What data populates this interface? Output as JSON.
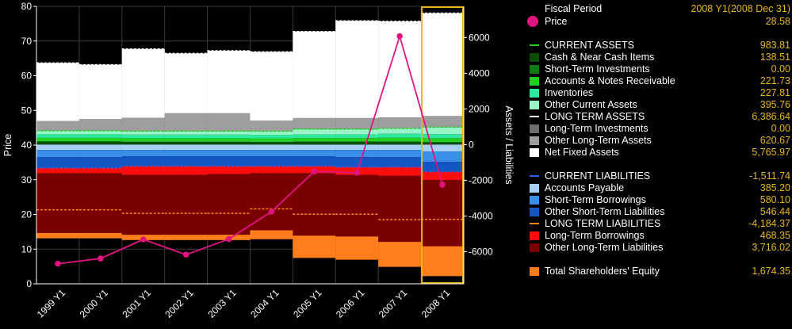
{
  "chart_data": {
    "type": "bar",
    "categories": [
      "1999 Y1",
      "2000 Y1",
      "2001 Y1",
      "2002 Y1",
      "2003 Y1",
      "2004 Y1",
      "2005 Y1",
      "2006 Y1",
      "2007 Y1",
      "2008 Y1"
    ],
    "left_axis": {
      "label": "Price",
      "min": 0,
      "max": 80,
      "ticks": [
        0,
        10,
        20,
        30,
        40,
        50,
        60,
        70,
        80
      ]
    },
    "right_axis": {
      "label": "Assets / Liabilities",
      "min": -7800,
      "max": 7750,
      "ticks": [
        -6000,
        -4000,
        -2000,
        0,
        2000,
        4000,
        6000
      ]
    },
    "price_series": {
      "name": "Price",
      "color": "#e0157f",
      "values": [
        5.8,
        7.3,
        12.8,
        8.4,
        12.9,
        20.8,
        32.4,
        32.0,
        71.4,
        28.58
      ]
    },
    "asset_series": [
      {
        "name": "Cash & Near Cash Items",
        "color": "#0a4d0a",
        "values": [
          180,
          180,
          160,
          160,
          160,
          150,
          170,
          170,
          170,
          138.51
        ]
      },
      {
        "name": "Short-Term Investments",
        "color": "#0f7a16",
        "values": [
          0,
          0,
          0,
          0,
          0,
          0,
          0,
          0,
          0,
          0
        ]
      },
      {
        "name": "Accounts & Notes Receivable",
        "color": "#22d022",
        "values": [
          200,
          200,
          200,
          200,
          200,
          200,
          200,
          200,
          220,
          221.73
        ]
      },
      {
        "name": "Inventories",
        "color": "#2ee8a0",
        "values": [
          200,
          200,
          200,
          200,
          200,
          200,
          200,
          200,
          220,
          227.81
        ]
      },
      {
        "name": "Other Current Assets",
        "color": "#98f5c6",
        "values": [
          200,
          200,
          200,
          200,
          200,
          200,
          300,
          300,
          300,
          395.76
        ]
      },
      {
        "name": "Long-Term Investments",
        "color": "#6e6e6e",
        "values": [
          0,
          0,
          0,
          0,
          0,
          0,
          0,
          0,
          0,
          0
        ]
      },
      {
        "name": "Other Long-Term Assets",
        "color": "#9e9e9e",
        "values": [
          550,
          650,
          750,
          1000,
          1000,
          600,
          620,
          620,
          620,
          620.67
        ]
      },
      {
        "name": "Net Fixed Assets",
        "color": "#ffffff",
        "values": [
          3250,
          3050,
          3850,
          3350,
          3500,
          3850,
          4850,
          5450,
          5380,
          5765.97
        ]
      }
    ],
    "liability_series": [
      {
        "name": "Accounts Payable",
        "color": "#a8d0f5",
        "values": [
          300,
          300,
          300,
          300,
          300,
          300,
          300,
          300,
          300,
          385.2
        ]
      },
      {
        "name": "Short-Term Borrowings",
        "color": "#3a8fe8",
        "values": [
          400,
          400,
          350,
          350,
          350,
          350,
          350,
          400,
          400,
          580.1
        ]
      },
      {
        "name": "Other Short-Term Liabilities",
        "color": "#1456c4",
        "values": [
          600,
          600,
          550,
          550,
          550,
          550,
          550,
          550,
          550,
          546.44
        ]
      },
      {
        "name": "Long-Term Borrowings",
        "color": "#ff0d0d",
        "values": [
          300,
          300,
          500,
          500,
          450,
          400,
          400,
          450,
          500,
          468.35
        ]
      },
      {
        "name": "Other Long-Term Liabilities",
        "color": "#7a0000",
        "values": [
          3350,
          3350,
          3350,
          3350,
          3400,
          3200,
          3500,
          3450,
          3700,
          3716.02
        ]
      },
      {
        "name": "Total Shareholders' Equity",
        "color": "#ff7d1a",
        "values": [
          300,
          300,
          300,
          300,
          300,
          500,
          1250,
          1300,
          1400,
          1674.35
        ]
      }
    ],
    "current_assets_totals": [
      780,
      780,
      760,
      760,
      760,
      750,
      870,
      870,
      910,
      983.81
    ],
    "current_liabilities_totals": [
      -1300,
      -1300,
      -1200,
      -1200,
      -1200,
      -1200,
      -1200,
      -1250,
      -1250,
      -1511.74
    ],
    "long_term_liabilities_totals": [
      -3650,
      -3650,
      -3850,
      -3850,
      -3850,
      -3600,
      -3900,
      -3900,
      -4200,
      -4184.37
    ],
    "highlighted_category": "2008 Y1",
    "highlight_color": "#e8b619"
  },
  "legend": {
    "header": {
      "label": "Fiscal Period",
      "value": "2008 Y1(2008 Dec 31)"
    },
    "price": {
      "label": "Price",
      "value": "28.58",
      "color": "#e0157f"
    },
    "rows": [
      {
        "kind": "dash",
        "color": "#22d022",
        "label": "CURRENT ASSETS",
        "value": "983.81"
      },
      {
        "kind": "box",
        "color": "#0a4d0a",
        "label": "Cash & Near Cash Items",
        "value": "138.51"
      },
      {
        "kind": "box",
        "color": "#0f7a16",
        "label": "Short-Term Investments",
        "value": "0.00"
      },
      {
        "kind": "box",
        "color": "#22d022",
        "label": "Accounts & Notes Receivable",
        "value": "221.73"
      },
      {
        "kind": "box",
        "color": "#2ee8a0",
        "label": "Inventories",
        "value": "227.81"
      },
      {
        "kind": "box",
        "color": "#98f5c6",
        "label": "Other Current Assets",
        "value": "395.76"
      },
      {
        "kind": "dash",
        "color": "#ffffff",
        "label": "LONG TERM ASSETS",
        "value": "6,386.64"
      },
      {
        "kind": "box",
        "color": "#6e6e6e",
        "label": "Long-Term Investments",
        "value": "0.00"
      },
      {
        "kind": "box",
        "color": "#9e9e9e",
        "label": "Other Long-Term Assets",
        "value": "620.67"
      },
      {
        "kind": "box",
        "color": "#ffffff",
        "label": "Net Fixed Assets",
        "value": "5,765.97"
      },
      {
        "kind": "gap"
      },
      {
        "kind": "dash",
        "color": "#2a62e8",
        "label": "CURRENT LIABILITIES",
        "value": "-1,511.74"
      },
      {
        "kind": "box",
        "color": "#a8d0f5",
        "label": "Accounts Payable",
        "value": "385.20"
      },
      {
        "kind": "box",
        "color": "#3a8fe8",
        "label": "Short-Term Borrowings",
        "value": "580.10"
      },
      {
        "kind": "box",
        "color": "#1456c4",
        "label": "Other Short-Term Liabilities",
        "value": "546.44"
      },
      {
        "kind": "dash",
        "color": "#ff8a1a",
        "label": "LONG TERM LIABILITIES",
        "value": "-4,184.37"
      },
      {
        "kind": "box",
        "color": "#ff0d0d",
        "label": "Long-Term Borrowings",
        "value": "468.35"
      },
      {
        "kind": "box",
        "color": "#7a0000",
        "label": "Other Long-Term Liabilities",
        "value": "3,716.02"
      },
      {
        "kind": "gap"
      },
      {
        "kind": "box",
        "color": "#ff7d1a",
        "label": "Total Shareholders' Equity",
        "value": "1,674.35"
      }
    ]
  }
}
